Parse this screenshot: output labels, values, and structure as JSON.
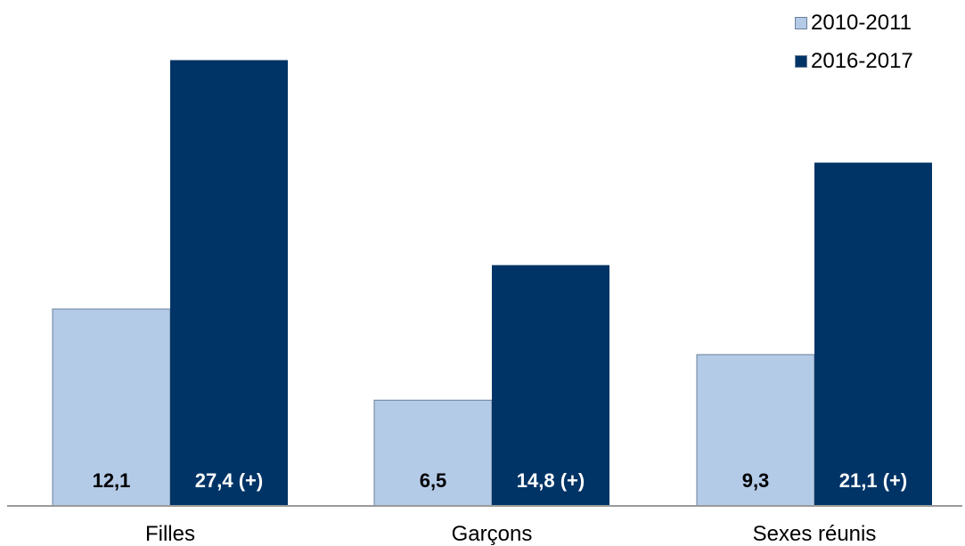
{
  "chart_data": {
    "type": "bar",
    "categories": [
      "Filles",
      "Garçons",
      "Sexes réunis"
    ],
    "series": [
      {
        "name": "2010-2011",
        "values": [
          12.1,
          6.5,
          9.3
        ],
        "labels": [
          "12,1",
          "6,5",
          "9,3"
        ],
        "color": "#b4cbe8"
      },
      {
        "name": "2016-2017",
        "values": [
          27.4,
          14.8,
          21.1
        ],
        "labels": [
          "27,4 (+)",
          "14,8 (+)",
          "21,1 (+)"
        ],
        "color": "#003466"
      }
    ],
    "ylim": [
      0,
      30
    ],
    "grid": false,
    "legend_position": "top-right",
    "title": "",
    "xlabel": "",
    "ylabel": ""
  }
}
